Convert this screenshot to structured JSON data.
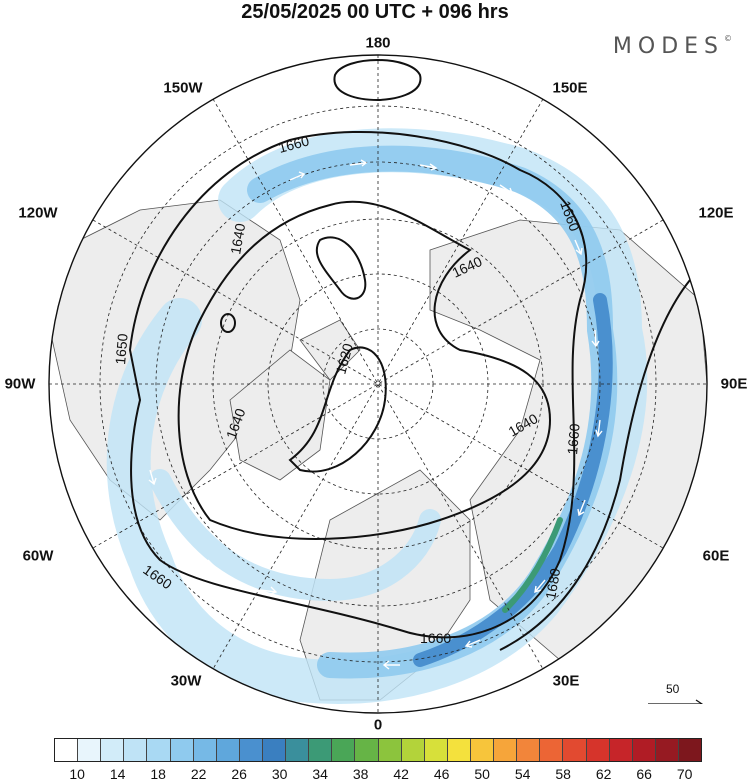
{
  "title": "25/05/2025  00 UTC  + 096 hrs",
  "brand": "MODES",
  "brand_mark": "©",
  "longitude_labels": {
    "top": "180",
    "bottom": "0",
    "left": "90W",
    "right": "90E",
    "upper_left": "150W",
    "upper_right": "150E",
    "mid_upper_left": "120W",
    "mid_upper_right": "120E",
    "mid_lower_left": "60W",
    "mid_lower_right": "60E",
    "lower_left": "30W",
    "lower_right": "30E"
  },
  "contour_labels": [
    "1660",
    "1640",
    "1660",
    "1640",
    "1650",
    "1620",
    "1640",
    "1640",
    "1660",
    "1660",
    "1680",
    "1660"
  ],
  "reference_vector": {
    "label": "50"
  },
  "colorbar": {
    "ticks": [
      "10",
      "14",
      "18",
      "22",
      "26",
      "30",
      "34",
      "38",
      "42",
      "46",
      "50",
      "54",
      "58",
      "62",
      "66",
      "70"
    ],
    "colors": [
      "#ffffff",
      "#e8f5fc",
      "#d2ecf9",
      "#bfe3f6",
      "#a9d9f3",
      "#8fcaee",
      "#76b9e6",
      "#5fa7dc",
      "#4a90cf",
      "#3a7fc0",
      "#3a8f9c",
      "#3c9a76",
      "#4aa657",
      "#66b446",
      "#8cc43d",
      "#b3d33a",
      "#d7e03a",
      "#f4e13d",
      "#f7c53b",
      "#f6a53a",
      "#f2853a",
      "#ec6535",
      "#e24a30",
      "#d6342b",
      "#c62529",
      "#b01c25",
      "#961a22",
      "#7d171d"
    ]
  },
  "colors": {
    "land": "#ededed",
    "ocean": "#ffffff",
    "jet_light": "#bfe3f6",
    "jet_mid": "#76b9e6",
    "jet_core": "#3a7fc0",
    "jet_max": "#3c9a76"
  }
}
